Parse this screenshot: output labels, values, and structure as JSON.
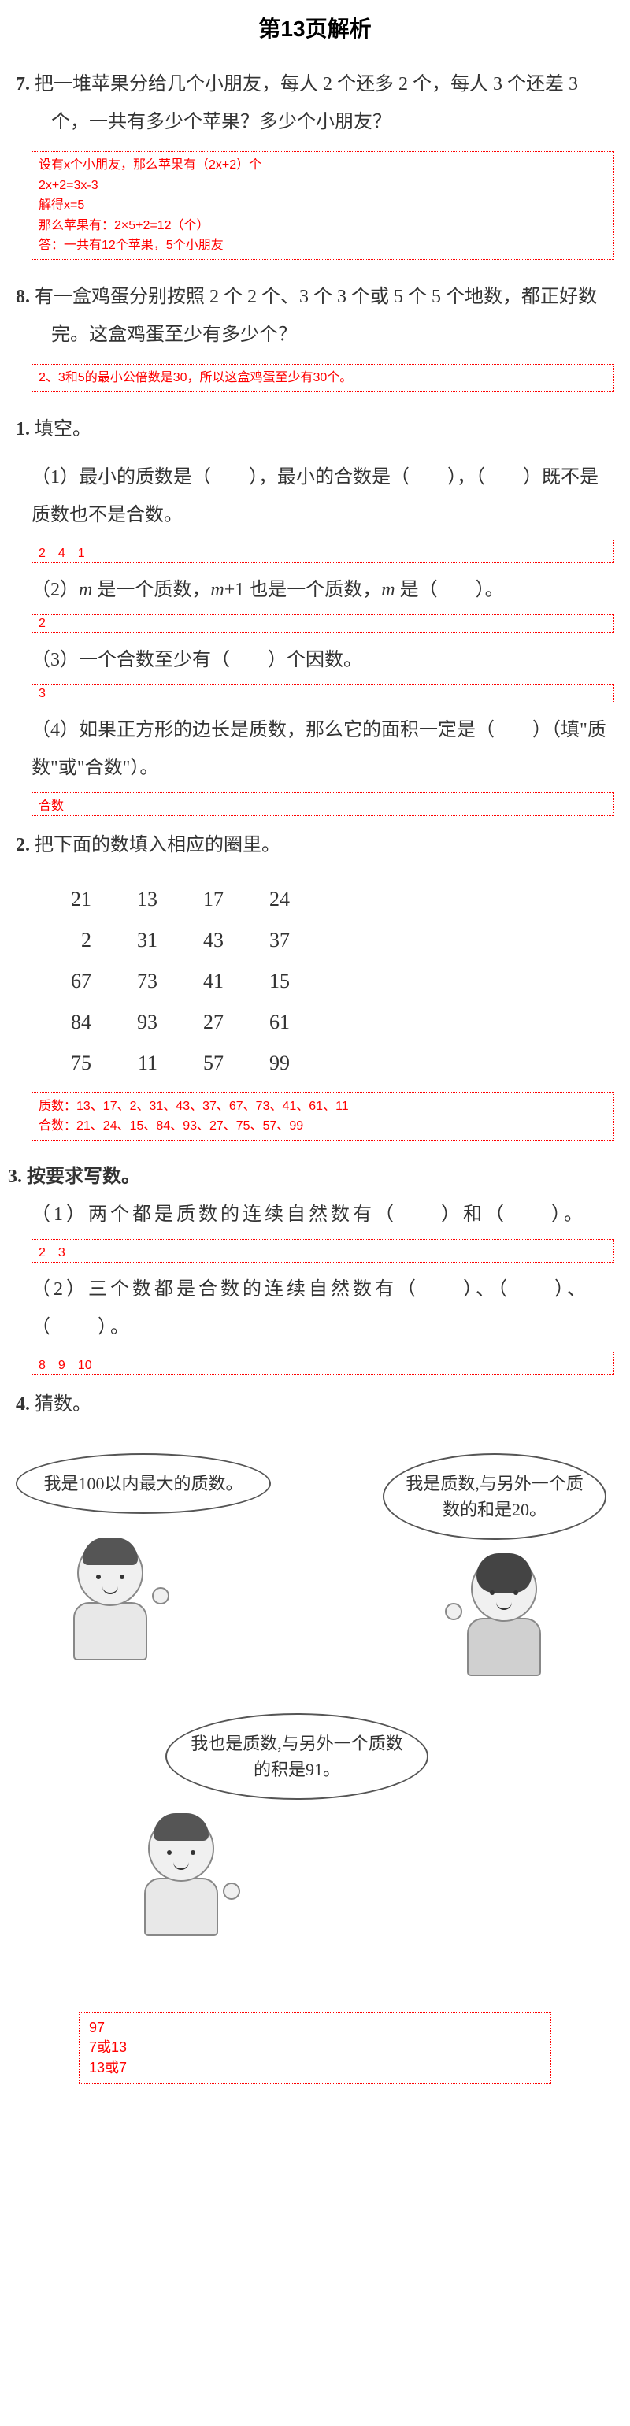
{
  "title": "第13页解析",
  "q7": {
    "num": "7.",
    "text": "把一堆苹果分给几个小朋友，每人 2 个还多 2 个，每人 3 个还差 3 个，一共有多少个苹果？多少个小朋友？",
    "answer": "设有x个小朋友，那么苹果有（2x+2）个\n2x+2=3x-3\n解得x=5\n那么苹果有：2×5+2=12（个）\n答：一共有12个苹果，5个小朋友"
  },
  "q8": {
    "num": "8.",
    "text": "有一盒鸡蛋分别按照 2 个 2 个、3 个 3 个或 5 个 5 个地数，都正好数完。这盒鸡蛋至少有多少个？",
    "answer": "2、3和5的最小公倍数是30，所以这盒鸡蛋至少有30个。"
  },
  "sec1": {
    "num": "1.",
    "title": "填空。",
    "sub1": {
      "label": "（1）",
      "text": "最小的质数是（　　），最小的合数是（　　），（　　）既不是质数也不是合数。",
      "answer": "2　4　1"
    },
    "sub2": {
      "label": "（2）",
      "pre": " 是一个质数，",
      "mid": "+1 也是一个质数，",
      "post": " 是（　　）。",
      "answer": "2"
    },
    "sub3": {
      "label": "（3）",
      "text": "一个合数至少有（　　）个因数。",
      "answer": "3"
    },
    "sub4": {
      "label": "（4）",
      "text": "如果正方形的边长是质数，那么它的面积一定是（　　）（填\"质数\"或\"合数\"）。",
      "answer": "合数"
    }
  },
  "sec2": {
    "num": "2.",
    "title": "把下面的数填入相应的圈里。",
    "numbers": [
      [
        "21",
        "13",
        "17",
        "24"
      ],
      [
        "2",
        "31",
        "43",
        "37"
      ],
      [
        "67",
        "73",
        "41",
        "15"
      ],
      [
        "84",
        "93",
        "27",
        "61"
      ],
      [
        "75",
        "11",
        "57",
        "99"
      ]
    ],
    "answer": "质数：13、17、2、31、43、37、67、73、41、61、11\n合数：21、24、15、84、93、27、75、57、99"
  },
  "sec3": {
    "num": "3.",
    "title": "按要求写数。",
    "sub1": {
      "label": "（1）",
      "text": "两个都是质数的连续自然数有（　　）和（　　）。",
      "answer": "2　3"
    },
    "sub2": {
      "label": "（2）",
      "text": "三个数都是合数的连续自然数有（　　）、（　　）、（　　）。",
      "answer": "8　9　10"
    }
  },
  "sec4": {
    "num": "4.",
    "title": "猜数。",
    "bubble1": "我是100以内最大的质数。",
    "bubble2": "我是质数,与另外一个质数的和是20。",
    "bubble3": "我也是质数,与另外一个质数的积是91。",
    "answer": "97\n7或13\n13或7"
  }
}
